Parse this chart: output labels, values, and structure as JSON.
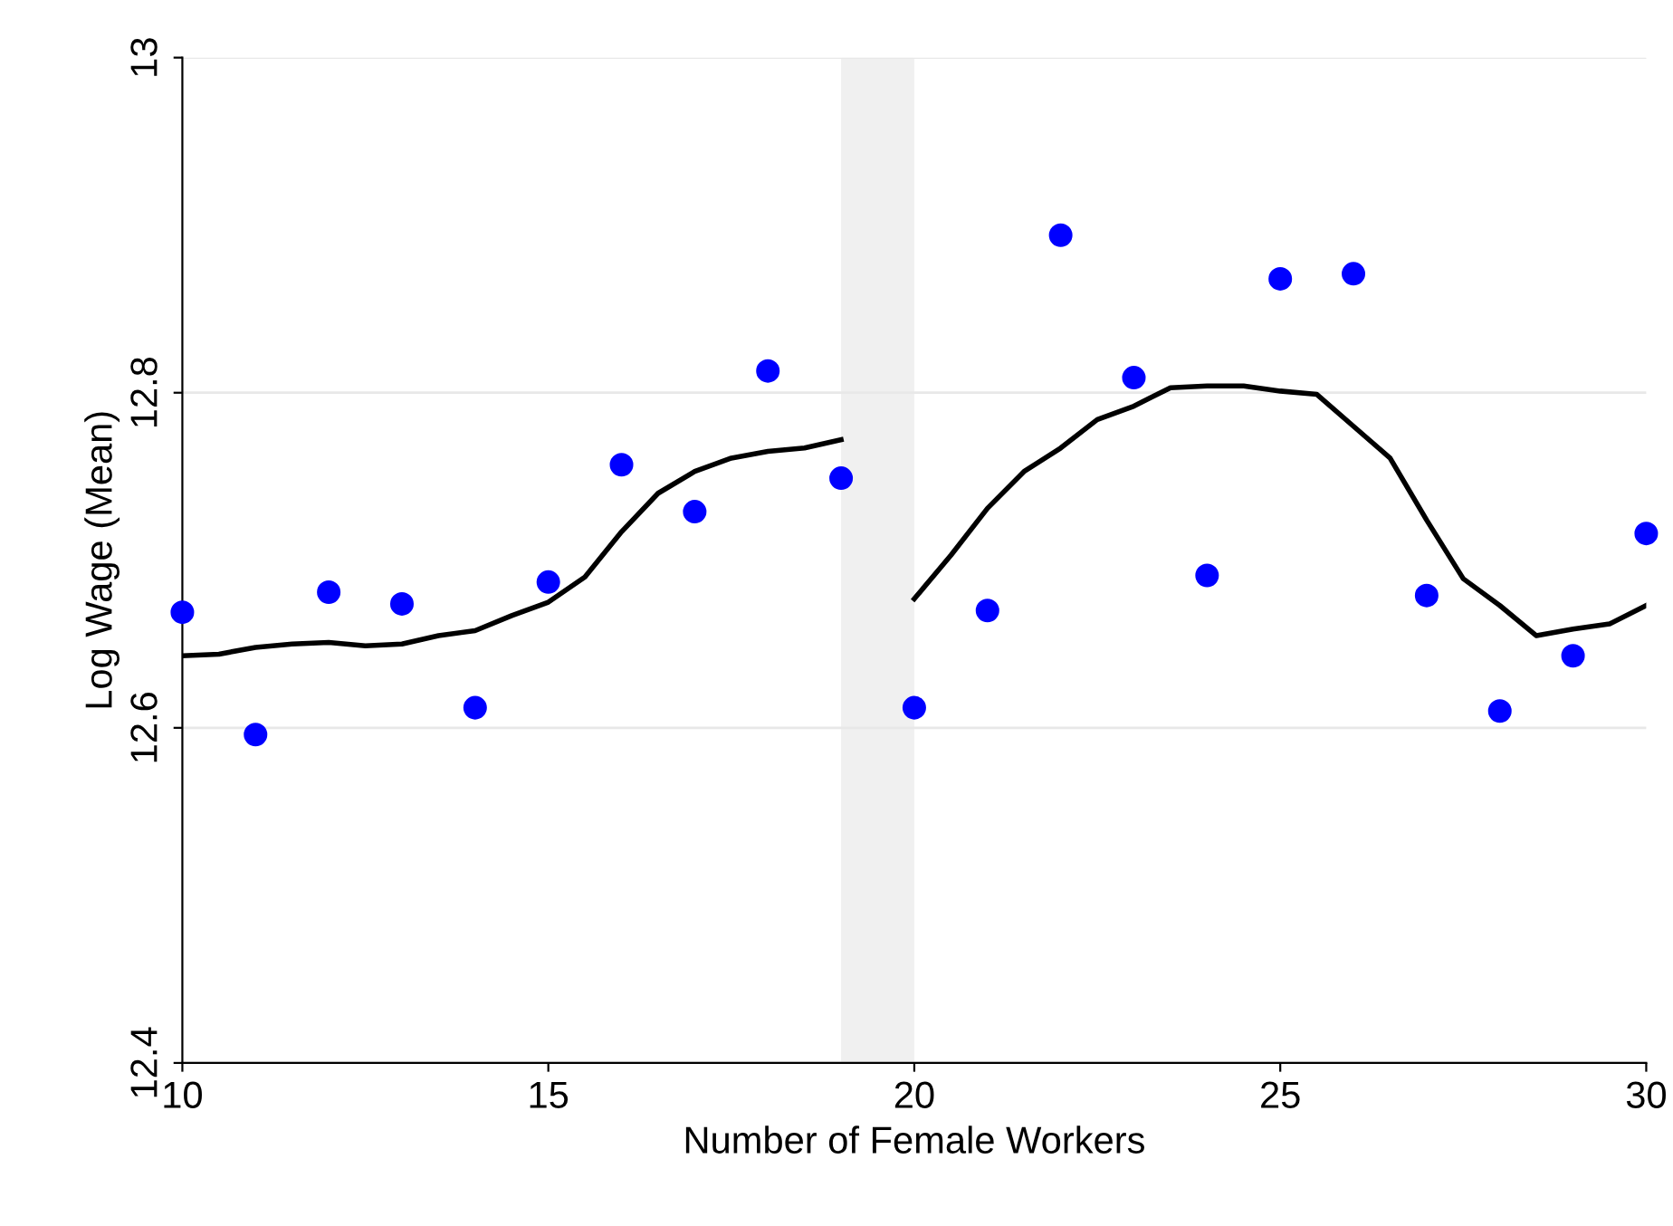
{
  "chart_data": {
    "type": "scatter",
    "xlabel": "Number of Female Workers",
    "ylabel": "Log Wage (Mean)",
    "xlim": [
      10,
      30
    ],
    "xticks": [
      10,
      15,
      20,
      25,
      30
    ],
    "ylim": [
      12.4,
      13
    ],
    "yticks": [
      12.4,
      12.6,
      12.8,
      13
    ],
    "grid": "y",
    "legend": false,
    "bands": [
      {
        "axis": "x",
        "from": 19,
        "to": 20,
        "color": "#f0f0f0"
      }
    ],
    "series": [
      {
        "color": "#0000ff",
        "marker": "circle",
        "x": [
          10,
          11,
          12,
          13,
          14,
          15,
          16,
          17,
          18,
          19,
          20,
          21,
          22,
          23,
          24,
          25,
          26,
          27,
          28,
          29,
          30
        ],
        "values": [
          12.669,
          12.596,
          12.681,
          12.674,
          12.612,
          12.687,
          12.757,
          12.729,
          12.813,
          12.749,
          12.612,
          12.67,
          12.894,
          12.809,
          12.691,
          12.868,
          12.871,
          12.679,
          12.61,
          12.643,
          12.716
        ]
      },
      {
        "type": "line",
        "color": "#000000",
        "line_style": "solid",
        "x": [
          10,
          10.5,
          11,
          11.5,
          12,
          12.5,
          13,
          13.5,
          14,
          14.5,
          15,
          15.5,
          16,
          16.5,
          17,
          17.5,
          18,
          18.5,
          19
        ],
        "values": [
          12.643,
          12.644,
          12.648,
          12.65,
          12.651,
          12.649,
          12.65,
          12.655,
          12.658,
          12.667,
          12.675,
          12.69,
          12.717,
          12.74,
          12.753,
          12.761,
          12.765,
          12.767,
          12.772
        ]
      },
      {
        "type": "line",
        "color": "#000000",
        "line_style": "solid",
        "x": [
          20,
          20.5,
          21,
          21.5,
          22,
          22.5,
          23,
          23.5,
          24,
          24.5,
          25,
          25.5,
          26,
          26.5,
          27,
          27.5,
          28,
          28.5,
          29,
          29.5,
          30
        ],
        "values": [
          12.677,
          12.703,
          12.731,
          12.753,
          12.767,
          12.784,
          12.792,
          12.803,
          12.804,
          12.804,
          12.801,
          12.799,
          12.78,
          12.761,
          12.724,
          12.689,
          12.673,
          12.655,
          12.659,
          12.662,
          12.673
        ]
      }
    ]
  }
}
